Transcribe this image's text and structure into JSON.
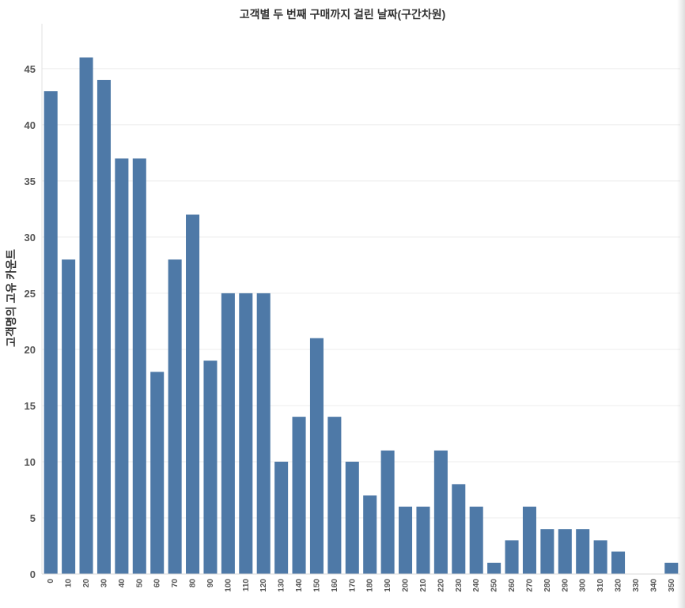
{
  "chart_data": {
    "type": "bar",
    "title": "고객별 두 번째 구매까지 걸린 날짜(구간차원)",
    "xlabel": "",
    "ylabel": "고객명의 고유 카운트",
    "categories": [
      "0",
      "10",
      "20",
      "30",
      "40",
      "50",
      "60",
      "70",
      "80",
      "90",
      "100",
      "110",
      "120",
      "130",
      "140",
      "150",
      "160",
      "170",
      "180",
      "190",
      "200",
      "210",
      "220",
      "230",
      "240",
      "250",
      "260",
      "270",
      "280",
      "290",
      "300",
      "310",
      "320",
      "330",
      "340",
      "350"
    ],
    "values": [
      43,
      28,
      46,
      44,
      37,
      37,
      18,
      28,
      32,
      19,
      25,
      25,
      25,
      10,
      14,
      21,
      14,
      10,
      7,
      11,
      6,
      6,
      11,
      8,
      6,
      1,
      3,
      6,
      4,
      4,
      4,
      3,
      2,
      0,
      0,
      1
    ],
    "ylim": [
      0,
      49
    ],
    "yticks": [
      0,
      5,
      10,
      15,
      20,
      25,
      30,
      35,
      40,
      45
    ],
    "grid": true,
    "bar_color": "#4e79a7"
  }
}
